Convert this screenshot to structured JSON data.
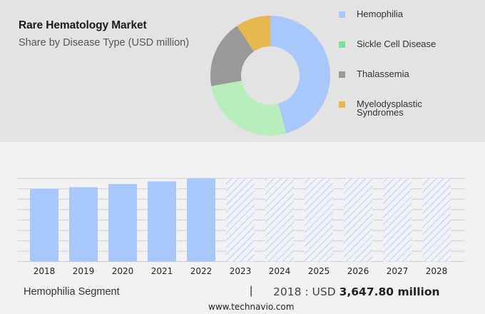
{
  "header": {
    "title": "Rare Hematology Market",
    "subtitle": "Share by Disease Type (USD million)"
  },
  "legend": [
    {
      "label": "Hemophilia",
      "color": "#a8c8fc"
    },
    {
      "label": "Sickle Cell Disease",
      "color": "#7ee098"
    },
    {
      "label": "Thalassemia",
      "color": "#999999"
    },
    {
      "label": "Myelodysplastic Syndromes",
      "color": "#e6b84e"
    }
  ],
  "footer": {
    "segment": "Hemophilia Segment",
    "separator": "|",
    "year_prefix": "2018 : USD ",
    "value": "3,647.80 million",
    "website": "www.technavio.com"
  },
  "chart_data": [
    {
      "type": "pie",
      "title": "Rare Hematology Market",
      "subtitle": "Share by Disease Type (USD million)",
      "donut": true,
      "categories": [
        "Hemophilia",
        "Sickle Cell Disease",
        "Thalassemia",
        "Myelodysplastic Syndromes"
      ],
      "values": [
        45.7,
        26.5,
        18.4,
        9.4
      ],
      "colors": [
        "#a8c8fc",
        "#b8eebb",
        "#999999",
        "#e6b84e"
      ],
      "legend_position": "right"
    },
    {
      "type": "bar",
      "title": "Hemophilia Segment",
      "categories": [
        "2018",
        "2019",
        "2020",
        "2021",
        "2022",
        "2023",
        "2024",
        "2025",
        "2026",
        "2027",
        "2028"
      ],
      "values": [
        3647.8,
        3730,
        3890,
        4020,
        4170,
        null,
        null,
        null,
        null,
        null,
        null
      ],
      "forecast": [
        false,
        false,
        false,
        false,
        false,
        true,
        true,
        true,
        true,
        true,
        true
      ],
      "annotation": "2018 : USD 3,647.80 million",
      "xlabel": "",
      "ylabel": "",
      "grid": true,
      "y_ticks_shown": false,
      "bar_color": "#a8c8fc"
    }
  ]
}
